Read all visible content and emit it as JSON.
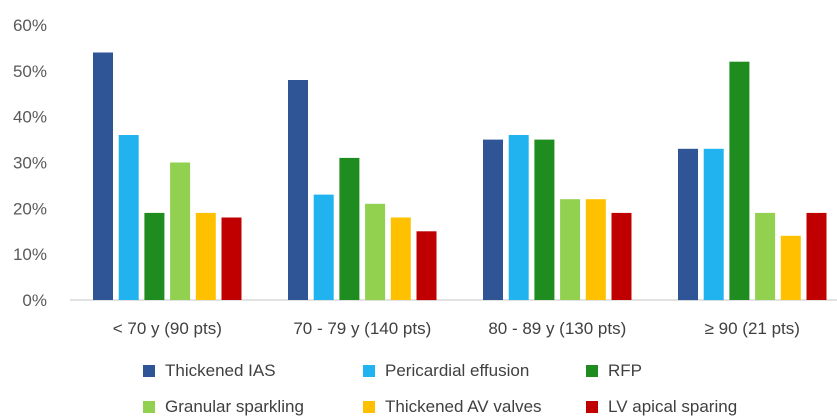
{
  "chart_data": {
    "type": "bar",
    "categories": [
      "< 70 y (90 pts)",
      "70 - 79 y (140 pts)",
      "80 - 89 y (130 pts)",
      "≥ 90 (21 pts)"
    ],
    "series": [
      {
        "name": "Thickened IAS",
        "color": "#2F5597",
        "values": [
          54,
          48,
          35,
          33
        ]
      },
      {
        "name": "Pericardial effusion",
        "color": "#20B3F0",
        "values": [
          36,
          23,
          36,
          33
        ]
      },
      {
        "name": "RFP",
        "color": "#1E8C1E",
        "values": [
          19,
          31,
          35,
          52
        ]
      },
      {
        "name": "Granular sparkling",
        "color": "#92D050",
        "values": [
          30,
          21,
          22,
          19
        ]
      },
      {
        "name": "Thickened AV valves",
        "color": "#FFC000",
        "values": [
          19,
          18,
          22,
          14
        ]
      },
      {
        "name": "LV apical sparing",
        "color": "#C00000",
        "values": [
          18,
          15,
          19,
          19
        ]
      }
    ],
    "yticks": [
      "0%",
      "10%",
      "20%",
      "30%",
      "40%",
      "50%",
      "60%"
    ],
    "ylim": [
      0,
      60
    ],
    "legend_position": "bottom",
    "grid": false
  }
}
